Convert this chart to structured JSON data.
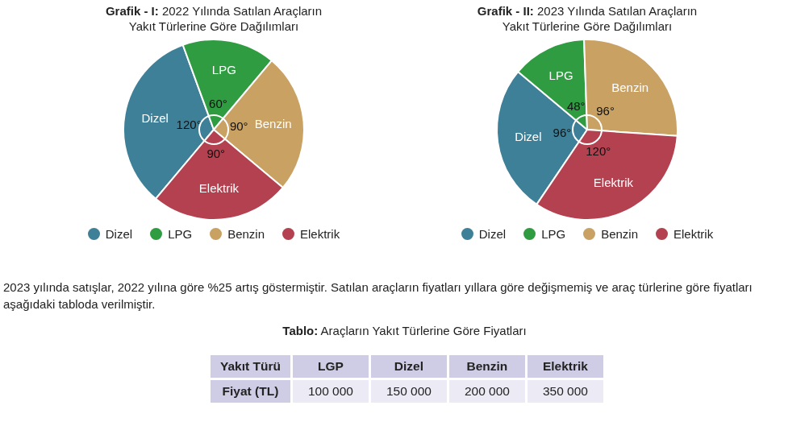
{
  "chart_data": [
    {
      "type": "pie",
      "title": "Grafik - I: 2022 Yılında Satılan Araçların Yakıt Türlerine Göre Dağılımları",
      "categories": [
        "Dizel",
        "LPG",
        "Benzin",
        "Elektrik"
      ],
      "values": [
        120,
        60,
        90,
        90
      ],
      "value_labels": [
        "120°",
        "60°",
        "90°",
        "90°"
      ],
      "colors": [
        "#3f8099",
        "#2f9c42",
        "#c9a162",
        "#b3414f"
      ],
      "legend": "bottom"
    },
    {
      "type": "pie",
      "title": "Grafik - II: 2023 Yılında Satılan Araçların Yakıt Türlerine Göre Dağılımları",
      "categories": [
        "Dizel",
        "LPG",
        "Benzin",
        "Elektrik"
      ],
      "values": [
        96,
        48,
        96,
        120
      ],
      "value_labels": [
        "96°",
        "48°",
        "96°",
        "120°"
      ],
      "colors": [
        "#3f8099",
        "#2f9c42",
        "#c9a162",
        "#b3414f"
      ],
      "legend": "bottom"
    },
    {
      "type": "other",
      "title": "Tablo: Araçların Yakıt Türlerine Göre Fiyatları",
      "xlabel": "Yakıt Türü",
      "ylabel": "Fiyat (TL)",
      "categories": [
        "LGP",
        "Dizel",
        "Benzin",
        "Elektrik"
      ],
      "values": [
        100000,
        150000,
        200000,
        350000
      ],
      "value_labels": [
        "100 000",
        "150 000",
        "200 000",
        "350 000"
      ],
      "annotations": [
        "2023 yılında satışlar, 2022 yılına göre %25 artış göstermiştir. Satılan araçların fiyatları yıllara göre değişmemiş ve araç türlerine göre fiyatları aşağıdaki tabloda verilmiştir."
      ]
    }
  ]
}
